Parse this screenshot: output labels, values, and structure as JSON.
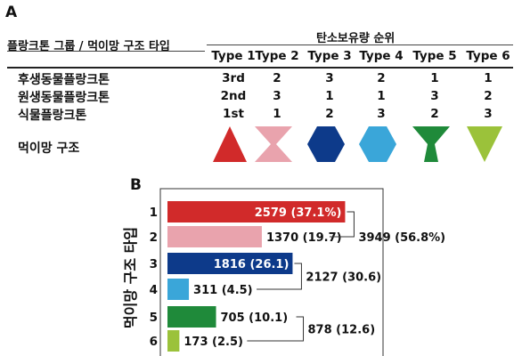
{
  "panel_a": {
    "letter": "A",
    "group_header": "플랑크톤 그룹 / 먹이망 구조 타입",
    "rank_header": "탄소보유량 순위",
    "types": [
      "Type 1",
      "Type 2",
      "Type 3",
      "Type 4",
      "Type 5",
      "Type 6"
    ],
    "rows": [
      {
        "label": "후생동물플랑크톤",
        "values": [
          "3rd",
          "2",
          "3",
          "2",
          "1",
          "1"
        ]
      },
      {
        "label": "원생동물플랑크톤",
        "values": [
          "2nd",
          "3",
          "1",
          "1",
          "3",
          "2"
        ]
      },
      {
        "label": "식물플랑크톤",
        "values": [
          "1st",
          "1",
          "2",
          "3",
          "2",
          "3"
        ]
      }
    ],
    "structure_label": "먹이망 구조",
    "shapes": [
      {
        "name": "triangle",
        "color": "#d12a2a"
      },
      {
        "name": "hourglass",
        "color": "#e9a3ad"
      },
      {
        "name": "hexagon",
        "color": "#0d3a8a"
      },
      {
        "name": "hexagon",
        "color": "#3aa6d9"
      },
      {
        "name": "funnel",
        "color": "#1f8a3a"
      },
      {
        "name": "inverted-triangle",
        "color": "#9bc23a"
      }
    ]
  },
  "chart_data": {
    "type": "bar",
    "orientation": "horizontal",
    "letter": "B",
    "ylabel": "먹이망 구조 타입",
    "categories": [
      "1",
      "2",
      "3",
      "4",
      "5",
      "6"
    ],
    "values": [
      2579,
      1370,
      1816,
      311,
      705,
      173
    ],
    "percents": [
      "37.1",
      "19.7",
      "26.1",
      "4.5",
      "10.1",
      "2.5"
    ],
    "bar_labels": [
      "2579 (37.1%)",
      "1370 (19.7)",
      "1816 (26.1)",
      "311 (4.5)",
      "705 (10.1)",
      "173 (2.5)"
    ],
    "colors": [
      "#d12a2a",
      "#e9a3ad",
      "#0d3a8a",
      "#3aa6d9",
      "#1f8a3a",
      "#9bc23a"
    ],
    "xlim": [
      0,
      3000
    ],
    "pair_totals": [
      {
        "bars": [
          0,
          1
        ],
        "label": "3949 (56.8%)"
      },
      {
        "bars": [
          2,
          3
        ],
        "label": "2127 (30.6)"
      },
      {
        "bars": [
          4,
          5
        ],
        "label": "878 (12.6)"
      }
    ]
  }
}
